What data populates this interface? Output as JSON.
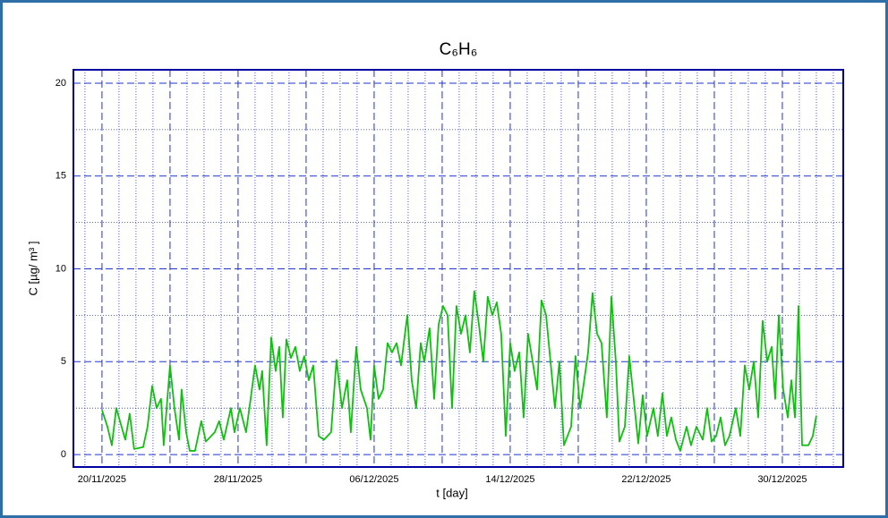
{
  "chart_data": {
    "type": "line",
    "title": "C₆H₆",
    "xlabel": "t [day]",
    "ylabel": "C [µg/ m³ ]",
    "color": "#10c010",
    "grid": true,
    "xlim": [
      -1.68,
      43.58
    ],
    "ylim": [
      -0.67,
      20.72
    ],
    "yticks": [
      0,
      5,
      10,
      15,
      20
    ],
    "xticks": [
      {
        "value": 0,
        "label": "20/11/2025"
      },
      {
        "value": 8,
        "label": "28/11/2025"
      },
      {
        "value": 16,
        "label": "06/12/2025"
      },
      {
        "value": 24,
        "label": "14/12/2025"
      },
      {
        "value": 32,
        "label": "22/12/2025"
      },
      {
        "value": 40,
        "label": "30/12/2025"
      }
    ],
    "x": [
      0,
      0.32,
      0.58,
      0.84,
      1.37,
      1.63,
      1.89,
      2.42,
      2.68,
      2.95,
      3.21,
      3.47,
      3.63,
      4.0,
      4.26,
      4.53,
      4.68,
      4.95,
      5.16,
      5.47,
      5.84,
      6.11,
      6.63,
      6.89,
      7.16,
      7.58,
      7.79,
      8.11,
      8.47,
      8.74,
      9.0,
      9.26,
      9.42,
      9.68,
      9.95,
      10.21,
      10.42,
      10.63,
      10.84,
      11.11,
      11.37,
      11.63,
      11.89,
      12.16,
      12.42,
      12.74,
      13.05,
      13.47,
      13.79,
      14.11,
      14.42,
      14.63,
      14.95,
      15.21,
      15.58,
      15.79,
      16.0,
      16.26,
      16.53,
      16.79,
      17.05,
      17.32,
      17.58,
      17.95,
      18.21,
      18.47,
      18.74,
      18.95,
      19.26,
      19.53,
      19.79,
      20.05,
      20.32,
      20.58,
      20.84,
      21.11,
      21.37,
      21.63,
      21.89,
      22.16,
      22.42,
      22.68,
      22.95,
      23.21,
      23.47,
      23.74,
      24.0,
      24.26,
      24.53,
      24.79,
      25.05,
      25.32,
      25.58,
      25.84,
      26.11,
      26.37,
      26.63,
      26.89,
      27.16,
      27.58,
      27.84,
      28.11,
      28.32,
      28.58,
      28.84,
      29.11,
      29.37,
      29.68,
      29.95,
      30.21,
      30.42,
      30.74,
      31.0,
      31.26,
      31.53,
      31.79,
      32.05,
      32.42,
      32.68,
      32.95,
      33.21,
      33.47,
      33.74,
      34.0,
      34.37,
      34.63,
      34.95,
      35.32,
      35.58,
      35.84,
      36.11,
      36.37,
      36.63,
      36.89,
      37.26,
      37.53,
      37.79,
      38.05,
      38.32,
      38.58,
      38.84,
      39.11,
      39.37,
      39.58,
      39.79,
      40.05,
      40.32,
      40.53,
      40.74,
      40.95,
      41.16,
      41.53,
      41.79,
      42.0
    ],
    "values": [
      2.4,
      1.5,
      0.5,
      2.5,
      0.8,
      2.2,
      0.3,
      0.4,
      1.5,
      3.7,
      2.5,
      3.0,
      0.5,
      4.8,
      2.5,
      0.8,
      3.5,
      1.2,
      0.2,
      0.2,
      1.8,
      0.7,
      1.2,
      1.8,
      0.8,
      2.5,
      1.2,
      2.5,
      1.2,
      3.0,
      4.8,
      3.5,
      4.5,
      0.5,
      6.3,
      4.5,
      5.8,
      2.0,
      6.2,
      5.2,
      5.8,
      4.5,
      5.3,
      4.0,
      4.8,
      1.0,
      0.8,
      1.2,
      5.1,
      2.5,
      4.0,
      1.2,
      5.8,
      3.5,
      2.5,
      0.8,
      4.8,
      3.0,
      3.5,
      6.0,
      5.5,
      6.0,
      4.8,
      7.5,
      4.0,
      2.5,
      6.0,
      5.0,
      6.8,
      3.0,
      7.0,
      8.0,
      7.5,
      2.5,
      8.0,
      6.5,
      7.5,
      5.5,
      8.8,
      7.0,
      5.0,
      8.5,
      7.5,
      8.2,
      6.5,
      1.0,
      6.0,
      4.5,
      5.5,
      2.0,
      6.5,
      5.0,
      3.5,
      8.3,
      7.5,
      5.0,
      2.5,
      5.0,
      0.5,
      1.5,
      5.3,
      2.5,
      3.8,
      5.5,
      8.7,
      6.5,
      6.0,
      2.0,
      8.5,
      5.0,
      0.7,
      1.5,
      5.3,
      3.0,
      0.6,
      3.2,
      1.0,
      2.5,
      1.0,
      3.3,
      1.0,
      2.0,
      0.8,
      0.2,
      1.5,
      0.5,
      1.5,
      0.8,
      2.5,
      0.7,
      1.0,
      2.0,
      0.5,
      1.0,
      2.5,
      1.0,
      4.8,
      3.5,
      5.0,
      2.0,
      7.2,
      5.0,
      5.8,
      3.0,
      7.5,
      3.5,
      2.0,
      4.0,
      2.0,
      8.0,
      0.5,
      0.5,
      1.0,
      2.1
    ]
  }
}
